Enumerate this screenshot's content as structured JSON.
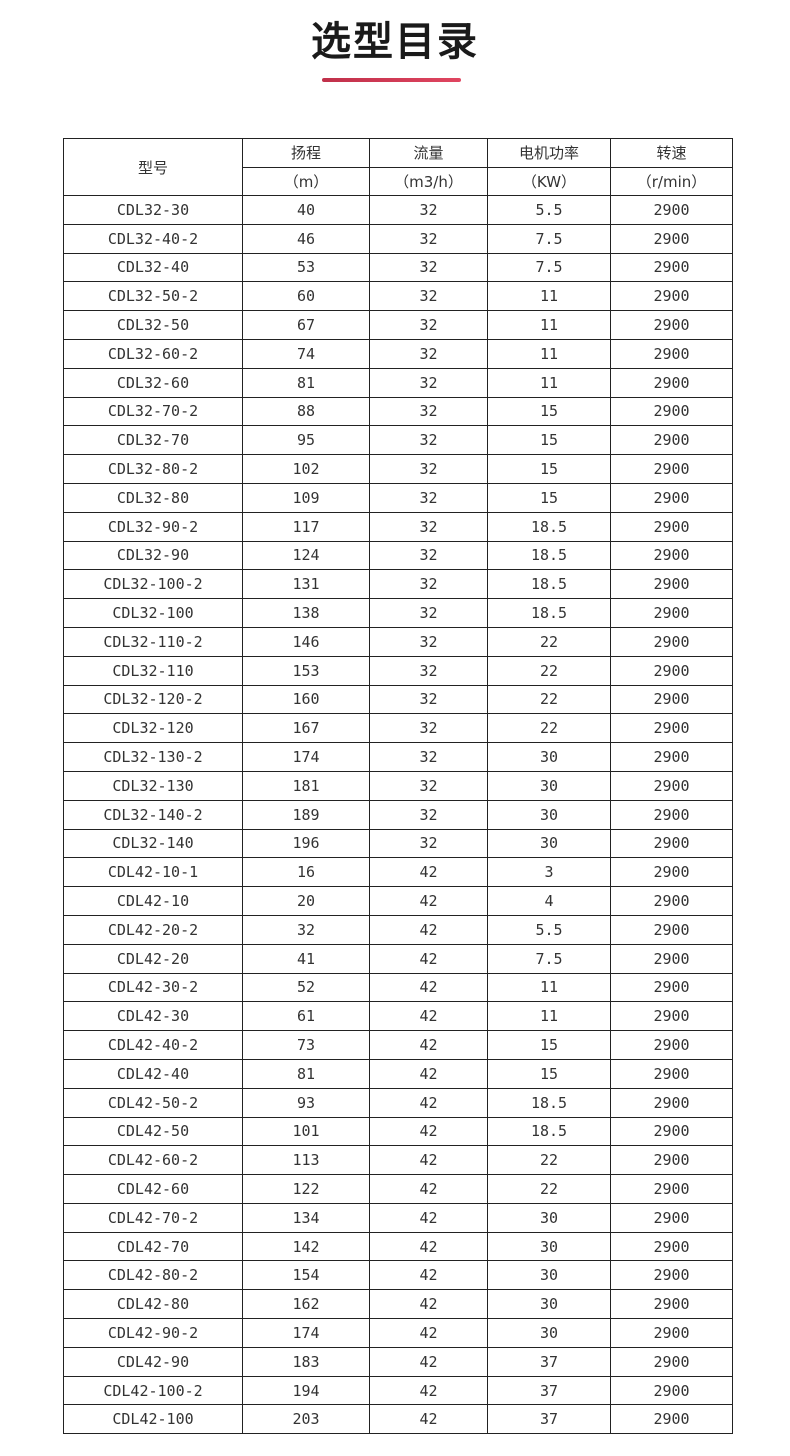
{
  "title": "选型目录",
  "accent_color": "#d03a55",
  "table": {
    "headers": {
      "model": "型号",
      "head": "扬程",
      "head_unit": "（m）",
      "flow": "流量",
      "flow_unit": "（m3/h）",
      "power": "电机功率",
      "power_unit": "（KW）",
      "speed": "转速",
      "speed_unit": "（r/min）"
    },
    "rows": [
      [
        "CDL32-30",
        "40",
        "32",
        "5.5",
        "2900"
      ],
      [
        "CDL32-40-2",
        "46",
        "32",
        "7.5",
        "2900"
      ],
      [
        "CDL32-40",
        "53",
        "32",
        "7.5",
        "2900"
      ],
      [
        "CDL32-50-2",
        "60",
        "32",
        "11",
        "2900"
      ],
      [
        "CDL32-50",
        "67",
        "32",
        "11",
        "2900"
      ],
      [
        "CDL32-60-2",
        "74",
        "32",
        "11",
        "2900"
      ],
      [
        "CDL32-60",
        "81",
        "32",
        "11",
        "2900"
      ],
      [
        "CDL32-70-2",
        "88",
        "32",
        "15",
        "2900"
      ],
      [
        "CDL32-70",
        "95",
        "32",
        "15",
        "2900"
      ],
      [
        "CDL32-80-2",
        "102",
        "32",
        "15",
        "2900"
      ],
      [
        "CDL32-80",
        "109",
        "32",
        "15",
        "2900"
      ],
      [
        "CDL32-90-2",
        "117",
        "32",
        "18.5",
        "2900"
      ],
      [
        "CDL32-90",
        "124",
        "32",
        "18.5",
        "2900"
      ],
      [
        "CDL32-100-2",
        "131",
        "32",
        "18.5",
        "2900"
      ],
      [
        "CDL32-100",
        "138",
        "32",
        "18.5",
        "2900"
      ],
      [
        "CDL32-110-2",
        "146",
        "32",
        "22",
        "2900"
      ],
      [
        "CDL32-110",
        "153",
        "32",
        "22",
        "2900"
      ],
      [
        "CDL32-120-2",
        "160",
        "32",
        "22",
        "2900"
      ],
      [
        "CDL32-120",
        "167",
        "32",
        "22",
        "2900"
      ],
      [
        "CDL32-130-2",
        "174",
        "32",
        "30",
        "2900"
      ],
      [
        "CDL32-130",
        "181",
        "32",
        "30",
        "2900"
      ],
      [
        "CDL32-140-2",
        "189",
        "32",
        "30",
        "2900"
      ],
      [
        "CDL32-140",
        "196",
        "32",
        "30",
        "2900"
      ],
      [
        "CDL42-10-1",
        "16",
        "42",
        "3",
        "2900"
      ],
      [
        "CDL42-10",
        "20",
        "42",
        "4",
        "2900"
      ],
      [
        "CDL42-20-2",
        "32",
        "42",
        "5.5",
        "2900"
      ],
      [
        "CDL42-20",
        "41",
        "42",
        "7.5",
        "2900"
      ],
      [
        "CDL42-30-2",
        "52",
        "42",
        "11",
        "2900"
      ],
      [
        "CDL42-30",
        "61",
        "42",
        "11",
        "2900"
      ],
      [
        "CDL42-40-2",
        "73",
        "42",
        "15",
        "2900"
      ],
      [
        "CDL42-40",
        "81",
        "42",
        "15",
        "2900"
      ],
      [
        "CDL42-50-2",
        "93",
        "42",
        "18.5",
        "2900"
      ],
      [
        "CDL42-50",
        "101",
        "42",
        "18.5",
        "2900"
      ],
      [
        "CDL42-60-2",
        "113",
        "42",
        "22",
        "2900"
      ],
      [
        "CDL42-60",
        "122",
        "42",
        "22",
        "2900"
      ],
      [
        "CDL42-70-2",
        "134",
        "42",
        "30",
        "2900"
      ],
      [
        "CDL42-70",
        "142",
        "42",
        "30",
        "2900"
      ],
      [
        "CDL42-80-2",
        "154",
        "42",
        "30",
        "2900"
      ],
      [
        "CDL42-80",
        "162",
        "42",
        "30",
        "2900"
      ],
      [
        "CDL42-90-2",
        "174",
        "42",
        "30",
        "2900"
      ],
      [
        "CDL42-90",
        "183",
        "42",
        "37",
        "2900"
      ],
      [
        "CDL42-100-2",
        "194",
        "42",
        "37",
        "2900"
      ],
      [
        "CDL42-100",
        "203",
        "42",
        "37",
        "2900"
      ]
    ]
  }
}
